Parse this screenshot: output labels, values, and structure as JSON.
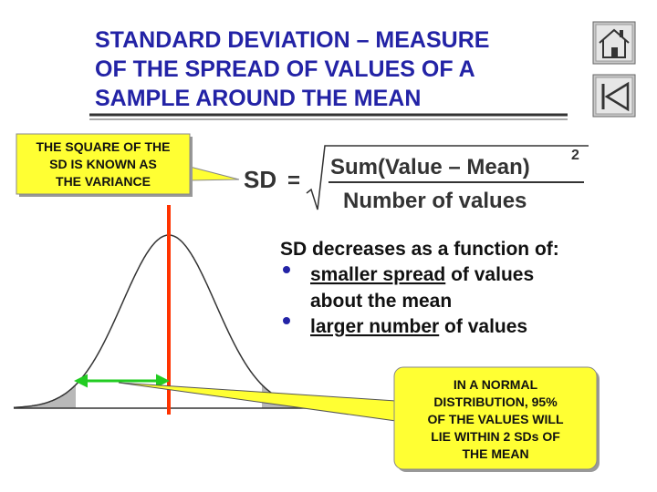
{
  "header": {
    "title_lines": [
      "STANDARD DEVIATION – MEASURE",
      "OF THE SPREAD OF VALUES OF A",
      "SAMPLE AROUND THE MEAN"
    ]
  },
  "variance_callout": {
    "lines": [
      "THE SQUARE OF THE",
      "SD IS KNOWN AS",
      "THE VARIANCE"
    ]
  },
  "formula": {
    "lhs": "SD",
    "equals": "=",
    "numerator": "Sum(Value – Mean)",
    "exponent": "2",
    "denominator": "Number of values"
  },
  "explanation": {
    "heading": "SD decreases as a function of:",
    "bullets": [
      {
        "underlined": "smaller spread",
        "rest": " of values",
        "continuation": "about the mean"
      },
      {
        "underlined": "larger number",
        "rest": " of values"
      }
    ]
  },
  "normal_callout": {
    "lines": [
      "IN A NORMAL",
      "DISTRIBUTION, 95%",
      "OF THE VALUES WILL",
      "LIE WITHIN 2 SDs OF",
      "THE MEAN"
    ]
  }
}
